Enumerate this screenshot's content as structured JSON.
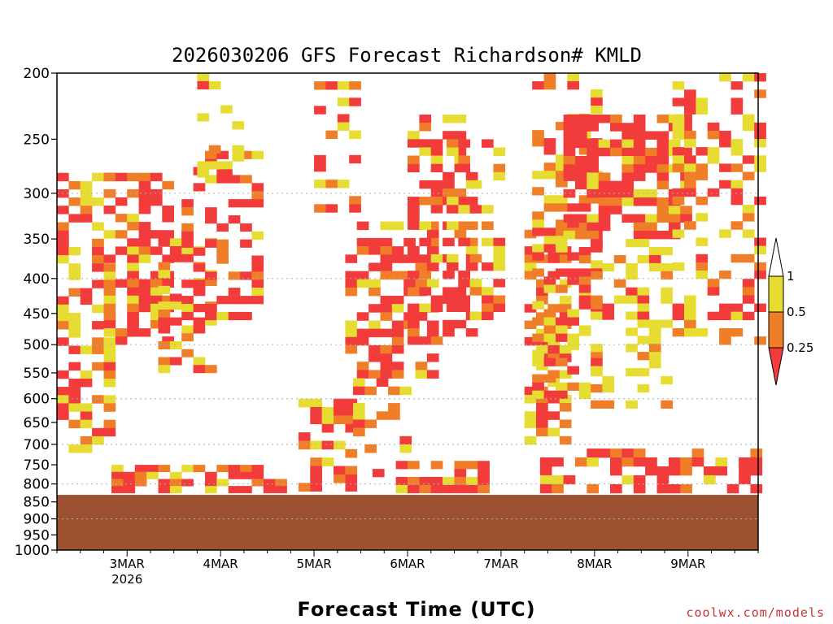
{
  "chart_data": {
    "type": "heatmap",
    "title": "2026030206 GFS Forecast Richardson# KMLD",
    "xlabel": "Forecast Time (UTC)",
    "ylabel": "",
    "y_scale": "log-pressure",
    "y_reversed": true,
    "ylim": [
      1000,
      200
    ],
    "y_ticks": [
      200,
      250,
      300,
      350,
      400,
      450,
      500,
      550,
      600,
      650,
      700,
      750,
      800,
      850,
      900,
      950,
      1000
    ],
    "grid_levels": [
      300,
      400,
      500,
      600,
      700,
      800,
      900,
      1000
    ],
    "grid": true,
    "xlim": [
      "2026-03-02 06",
      "2026-03-09 18"
    ],
    "x_ticks": [
      {
        "label": "3MAR",
        "sublabel": "2026",
        "time": "2026-03-03 00"
      },
      {
        "label": "4MAR",
        "sublabel": "",
        "time": "2026-03-04 00"
      },
      {
        "label": "5MAR",
        "sublabel": "",
        "time": "2026-03-05 00"
      },
      {
        "label": "6MAR",
        "sublabel": "",
        "time": "2026-03-06 00"
      },
      {
        "label": "7MAR",
        "sublabel": "",
        "time": "2026-03-07 00"
      },
      {
        "label": "8MAR",
        "sublabel": "",
        "time": "2026-03-08 00"
      },
      {
        "label": "9MAR",
        "sublabel": "",
        "time": "2026-03-09 00"
      }
    ],
    "legend": {
      "placement": "right",
      "bins": [
        {
          "range": "<0.25",
          "color": "#f23c3c"
        },
        {
          "range": "0.25-0.5",
          "color": "#f07e28"
        },
        {
          "range": "0.5-1",
          "color": "#e6dc32"
        },
        {
          "range": ">1",
          "color": "#ffffff"
        }
      ],
      "labels": [
        "1",
        "0.5",
        "0.25"
      ]
    },
    "below_ground_color": "#9c5230",
    "surface_pressure": 830,
    "regions": [
      {
        "t0": "2026-03-02 06",
        "t1": "2026-03-02 20",
        "p_top": 280,
        "p_bot": 720,
        "level": "mixed",
        "density": 0.55
      },
      {
        "t0": "2026-03-02 18",
        "t1": "2026-03-03 10",
        "p_top": 280,
        "p_bot": 500,
        "level": "red-dominant",
        "density": 0.55
      },
      {
        "t0": "2026-03-03 08",
        "t1": "2026-03-03 22",
        "p_top": 340,
        "p_bot": 550,
        "level": "mixed",
        "density": 0.45
      },
      {
        "t0": "2026-03-03 14",
        "t1": "2026-03-04 10",
        "p_top": 260,
        "p_bot": 460,
        "level": "red-dominant",
        "density": 0.5
      },
      {
        "t0": "2026-03-03 18",
        "t1": "2026-03-04 06",
        "p_top": 200,
        "p_bot": 300,
        "level": "yellow-dominant",
        "density": 0.25
      },
      {
        "t0": "2026-03-02 20",
        "t1": "2026-03-04 16",
        "p_top": 750,
        "p_bot": 825,
        "level": "red-dominant",
        "density": 0.6
      },
      {
        "t0": "2026-03-04 20",
        "t1": "2026-03-05 10",
        "p_top": 600,
        "p_bot": 820,
        "level": "red-dominant",
        "density": 0.6
      },
      {
        "t0": "2026-03-05 00",
        "t1": "2026-03-05 10",
        "p_top": 200,
        "p_bot": 320,
        "level": "mixed",
        "density": 0.25
      },
      {
        "t0": "2026-03-05 08",
        "t1": "2026-03-06 08",
        "p_top": 330,
        "p_bot": 560,
        "level": "red-dominant",
        "density": 0.55
      },
      {
        "t0": "2026-03-05 10",
        "t1": "2026-03-06 04",
        "p_top": 560,
        "p_bot": 720,
        "level": "mixed",
        "density": 0.35
      },
      {
        "t0": "2026-03-05 12",
        "t1": "2026-03-06 20",
        "p_top": 740,
        "p_bot": 825,
        "level": "red-dominant",
        "density": 0.6
      },
      {
        "t0": "2026-03-06 00",
        "t1": "2026-03-06 16",
        "p_top": 230,
        "p_bot": 500,
        "level": "red-dominant",
        "density": 0.5
      },
      {
        "t0": "2026-03-06 10",
        "t1": "2026-03-07 00",
        "p_top": 250,
        "p_bot": 460,
        "level": "mixed",
        "density": 0.35
      },
      {
        "t0": "2026-03-07 06",
        "t1": "2026-03-07 16",
        "p_top": 330,
        "p_bot": 700,
        "level": "mixed",
        "density": 0.5
      },
      {
        "t0": "2026-03-07 08",
        "t1": "2026-03-08 02",
        "p_top": 200,
        "p_bot": 600,
        "level": "mixed",
        "density": 0.45
      },
      {
        "t0": "2026-03-07 16",
        "t1": "2026-03-09 00",
        "p_top": 230,
        "p_bot": 350,
        "level": "red-dominant",
        "density": 0.7
      },
      {
        "t0": "2026-03-07 20",
        "t1": "2026-03-08 20",
        "p_top": 350,
        "p_bot": 620,
        "level": "yellow-dominant",
        "density": 0.35
      },
      {
        "t0": "2026-03-08 20",
        "t1": "2026-03-09 18",
        "p_top": 200,
        "p_bot": 500,
        "level": "mixed",
        "density": 0.4
      },
      {
        "t0": "2026-03-07 10",
        "t1": "2026-03-09 18",
        "p_top": 710,
        "p_bot": 825,
        "level": "red-dominant",
        "density": 0.45
      }
    ]
  },
  "credit": "coolwx.com/models"
}
